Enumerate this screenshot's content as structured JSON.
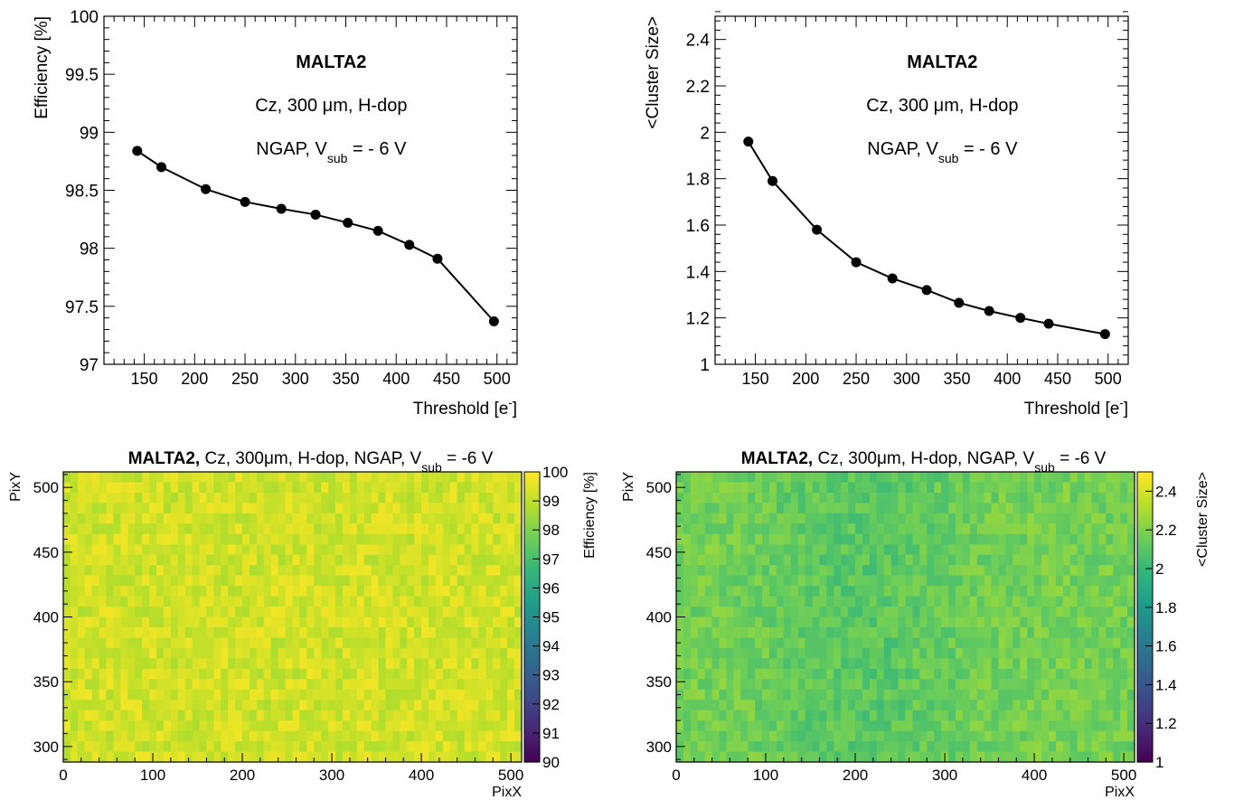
{
  "chart_data": [
    {
      "type": "line",
      "xlabel": "Threshold [e-]",
      "ylabel": "Efficiency [%]",
      "xlim": [
        110,
        520
      ],
      "ylim": [
        97,
        100
      ],
      "x_ticks": [
        150,
        200,
        250,
        300,
        350,
        400,
        450,
        500
      ],
      "y_ticks": [
        97,
        97.5,
        98,
        98.5,
        99,
        99.5,
        100
      ],
      "annotations": {
        "title": "MALTA2",
        "line1": "Cz, 300 μm, H-dop",
        "line2_prefix": "NGAP, V",
        "line2_sub": "sub",
        "line2_suffix": " = - 6 V"
      },
      "x": [
        143,
        167,
        211,
        250,
        286,
        320,
        352,
        382,
        413,
        441,
        497
      ],
      "y": [
        98.84,
        98.7,
        98.51,
        98.4,
        98.34,
        98.29,
        98.22,
        98.15,
        98.03,
        97.91,
        97.37
      ]
    },
    {
      "type": "line",
      "xlabel": "Threshold [e-]",
      "ylabel": "<Cluster Size>",
      "xlim": [
        110,
        520
      ],
      "ylim": [
        1,
        2.5
      ],
      "x_ticks": [
        150,
        200,
        250,
        300,
        350,
        400,
        450,
        500
      ],
      "y_ticks": [
        1,
        1.2,
        1.4,
        1.6,
        1.8,
        2,
        2.2,
        2.4
      ],
      "annotations": {
        "title": "MALTA2",
        "line1": "Cz, 300 μm, H-dop",
        "line2_prefix": "NGAP, V",
        "line2_sub": "sub",
        "line2_suffix": " = - 6 V"
      },
      "x": [
        143,
        167,
        211,
        250,
        286,
        320,
        352,
        382,
        413,
        441,
        497
      ],
      "y": [
        1.96,
        1.79,
        1.58,
        1.44,
        1.37,
        1.32,
        1.265,
        1.23,
        1.2,
        1.175,
        1.13
      ]
    },
    {
      "type": "heatmap",
      "title_bold": "MALTA2,",
      "title_rest": " Cz, 300μm, H-dop, NGAP, V",
      "title_sub": "sub",
      "title_suffix": " = -6 V",
      "xlabel": "PixX",
      "ylabel": "PixY",
      "zlabel": "Efficiency [%]",
      "xlim": [
        0,
        512
      ],
      "ylim": [
        288,
        512
      ],
      "zlim": [
        90,
        100
      ],
      "x_ticks": [
        0,
        100,
        200,
        300,
        400,
        500
      ],
      "y_ticks": [
        300,
        350,
        400,
        450,
        500
      ],
      "z_ticks": [
        90,
        91,
        92,
        93,
        94,
        95,
        96,
        97,
        98,
        99,
        100
      ],
      "colormap": "viridis",
      "value_range": [
        98.6,
        99.8
      ],
      "typical_value": 99.3
    },
    {
      "type": "heatmap",
      "title_bold": "MALTA2,",
      "title_rest": " Cz, 300μm, H-dop, NGAP, V",
      "title_sub": "sub",
      "title_suffix": " = -6 V",
      "xlabel": "PixX",
      "ylabel": "PixY",
      "zlabel": "<Cluster Size>",
      "xlim": [
        0,
        512
      ],
      "ylim": [
        288,
        512
      ],
      "zlim": [
        1,
        2.5
      ],
      "x_ticks": [
        0,
        100,
        200,
        300,
        400,
        500
      ],
      "y_ticks": [
        300,
        350,
        400,
        450,
        500
      ],
      "z_ticks": [
        1,
        1.2,
        1.4,
        1.6,
        1.8,
        2,
        2.2,
        2.4
      ],
      "colormap": "viridis",
      "value_range": [
        2.0,
        2.3
      ],
      "typical_value": 2.15
    }
  ]
}
